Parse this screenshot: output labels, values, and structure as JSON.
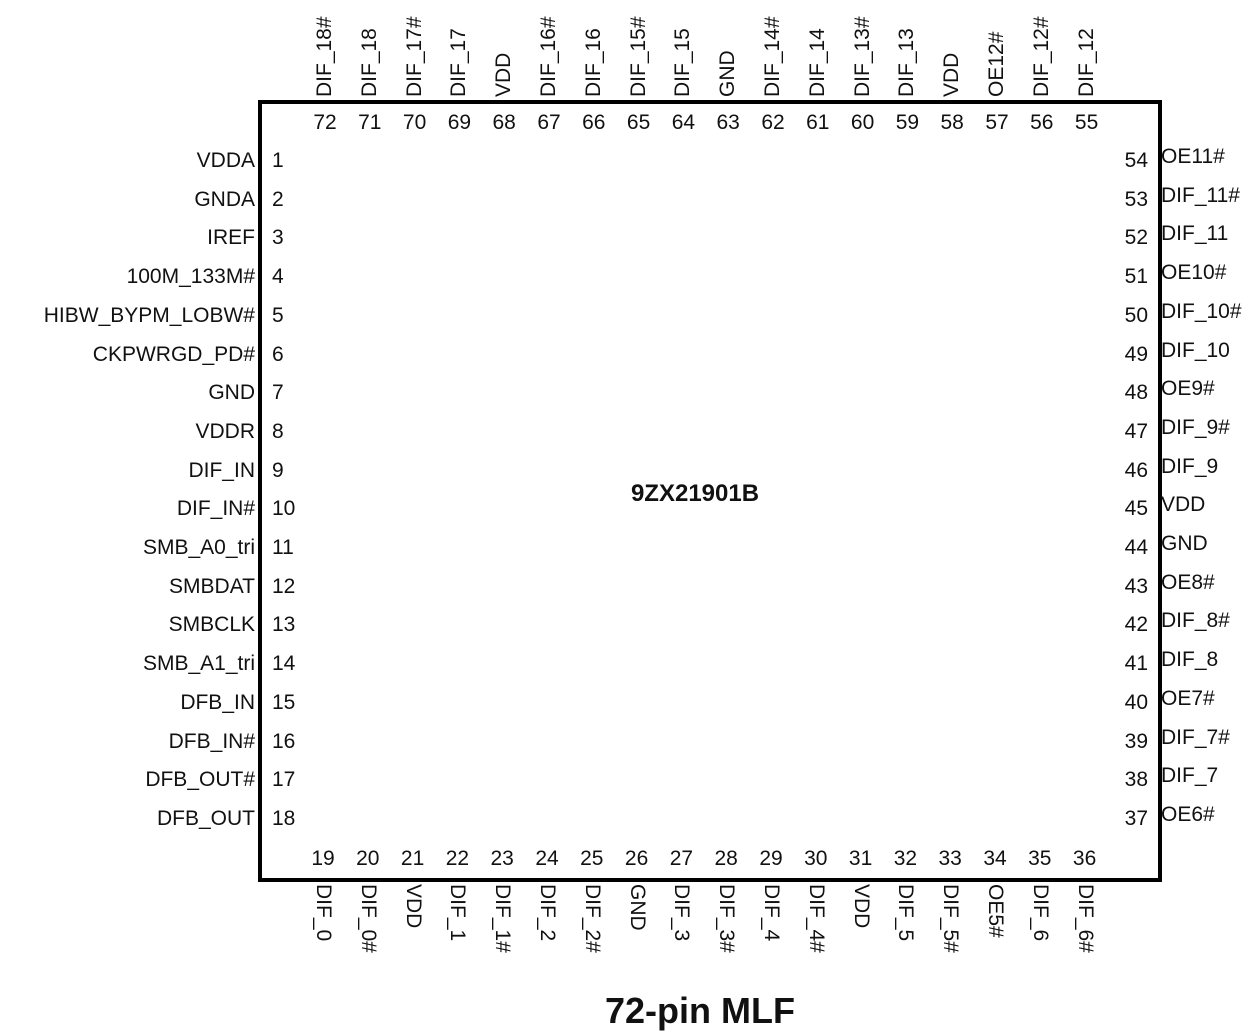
{
  "diagram": {
    "part_number": "9ZX21901B",
    "package_label": "72-pin MLF",
    "pins": {
      "left": [
        {
          "num": "1",
          "name": "VDDA"
        },
        {
          "num": "2",
          "name": "GNDA"
        },
        {
          "num": "3",
          "name": "IREF"
        },
        {
          "num": "4",
          "name": "100M_133M#"
        },
        {
          "num": "5",
          "name": "HIBW_BYPM_LOBW#"
        },
        {
          "num": "6",
          "name": "CKPWRGD_PD#"
        },
        {
          "num": "7",
          "name": "GND"
        },
        {
          "num": "8",
          "name": "VDDR"
        },
        {
          "num": "9",
          "name": "DIF_IN"
        },
        {
          "num": "10",
          "name": "DIF_IN#"
        },
        {
          "num": "11",
          "name": "SMB_A0_tri"
        },
        {
          "num": "12",
          "name": "SMBDAT"
        },
        {
          "num": "13",
          "name": "SMBCLK"
        },
        {
          "num": "14",
          "name": "SMB_A1_tri"
        },
        {
          "num": "15",
          "name": "DFB_IN"
        },
        {
          "num": "16",
          "name": "DFB_IN#"
        },
        {
          "num": "17",
          "name": "DFB_OUT#"
        },
        {
          "num": "18",
          "name": "DFB_OUT"
        }
      ],
      "bottom": [
        {
          "num": "19",
          "name": "DIF_0"
        },
        {
          "num": "20",
          "name": "DIF_0#"
        },
        {
          "num": "21",
          "name": "VDD"
        },
        {
          "num": "22",
          "name": "DIF_1"
        },
        {
          "num": "23",
          "name": "DIF_1#"
        },
        {
          "num": "24",
          "name": "DIF_2"
        },
        {
          "num": "25",
          "name": "DIF_2#"
        },
        {
          "num": "26",
          "name": "GND"
        },
        {
          "num": "27",
          "name": "DIF_3"
        },
        {
          "num": "28",
          "name": "DIF_3#"
        },
        {
          "num": "29",
          "name": "DIF_4"
        },
        {
          "num": "30",
          "name": "DIF_4#"
        },
        {
          "num": "31",
          "name": "VDD"
        },
        {
          "num": "32",
          "name": "DIF_5"
        },
        {
          "num": "33",
          "name": "DIF_5#"
        },
        {
          "num": "34",
          "name": "OE5#"
        },
        {
          "num": "35",
          "name": "DIF_6"
        },
        {
          "num": "36",
          "name": "DIF_6#"
        }
      ],
      "right": [
        {
          "num": "54",
          "name": "OE11#"
        },
        {
          "num": "53",
          "name": "DIF_11#"
        },
        {
          "num": "52",
          "name": "DIF_11"
        },
        {
          "num": "51",
          "name": "OE10#"
        },
        {
          "num": "50",
          "name": "DIF_10#"
        },
        {
          "num": "49",
          "name": "DIF_10"
        },
        {
          "num": "48",
          "name": "OE9#"
        },
        {
          "num": "47",
          "name": "DIF_9#"
        },
        {
          "num": "46",
          "name": "DIF_9"
        },
        {
          "num": "45",
          "name": "VDD"
        },
        {
          "num": "44",
          "name": "GND"
        },
        {
          "num": "43",
          "name": "OE8#"
        },
        {
          "num": "42",
          "name": "DIF_8#"
        },
        {
          "num": "41",
          "name": "DIF_8"
        },
        {
          "num": "40",
          "name": "OE7#"
        },
        {
          "num": "39",
          "name": "DIF_7#"
        },
        {
          "num": "38",
          "name": "DIF_7"
        },
        {
          "num": "37",
          "name": "OE6#"
        }
      ],
      "top": [
        {
          "num": "72",
          "name": "DIF_18#"
        },
        {
          "num": "71",
          "name": "DIF_18"
        },
        {
          "num": "70",
          "name": "DIF_17#"
        },
        {
          "num": "69",
          "name": "DIF_17"
        },
        {
          "num": "68",
          "name": "VDD"
        },
        {
          "num": "67",
          "name": "DIF_16#"
        },
        {
          "num": "66",
          "name": "DIF_16"
        },
        {
          "num": "65",
          "name": "DIF_15#"
        },
        {
          "num": "64",
          "name": "DIF_15"
        },
        {
          "num": "63",
          "name": "GND"
        },
        {
          "num": "62",
          "name": "DIF_14#"
        },
        {
          "num": "61",
          "name": "DIF_14"
        },
        {
          "num": "60",
          "name": "DIF_13#"
        },
        {
          "num": "59",
          "name": "DIF_13"
        },
        {
          "num": "58",
          "name": "VDD"
        },
        {
          "num": "57",
          "name": "OE12#"
        },
        {
          "num": "56",
          "name": "DIF_12#"
        },
        {
          "num": "55",
          "name": "DIF_12"
        }
      ]
    }
  }
}
